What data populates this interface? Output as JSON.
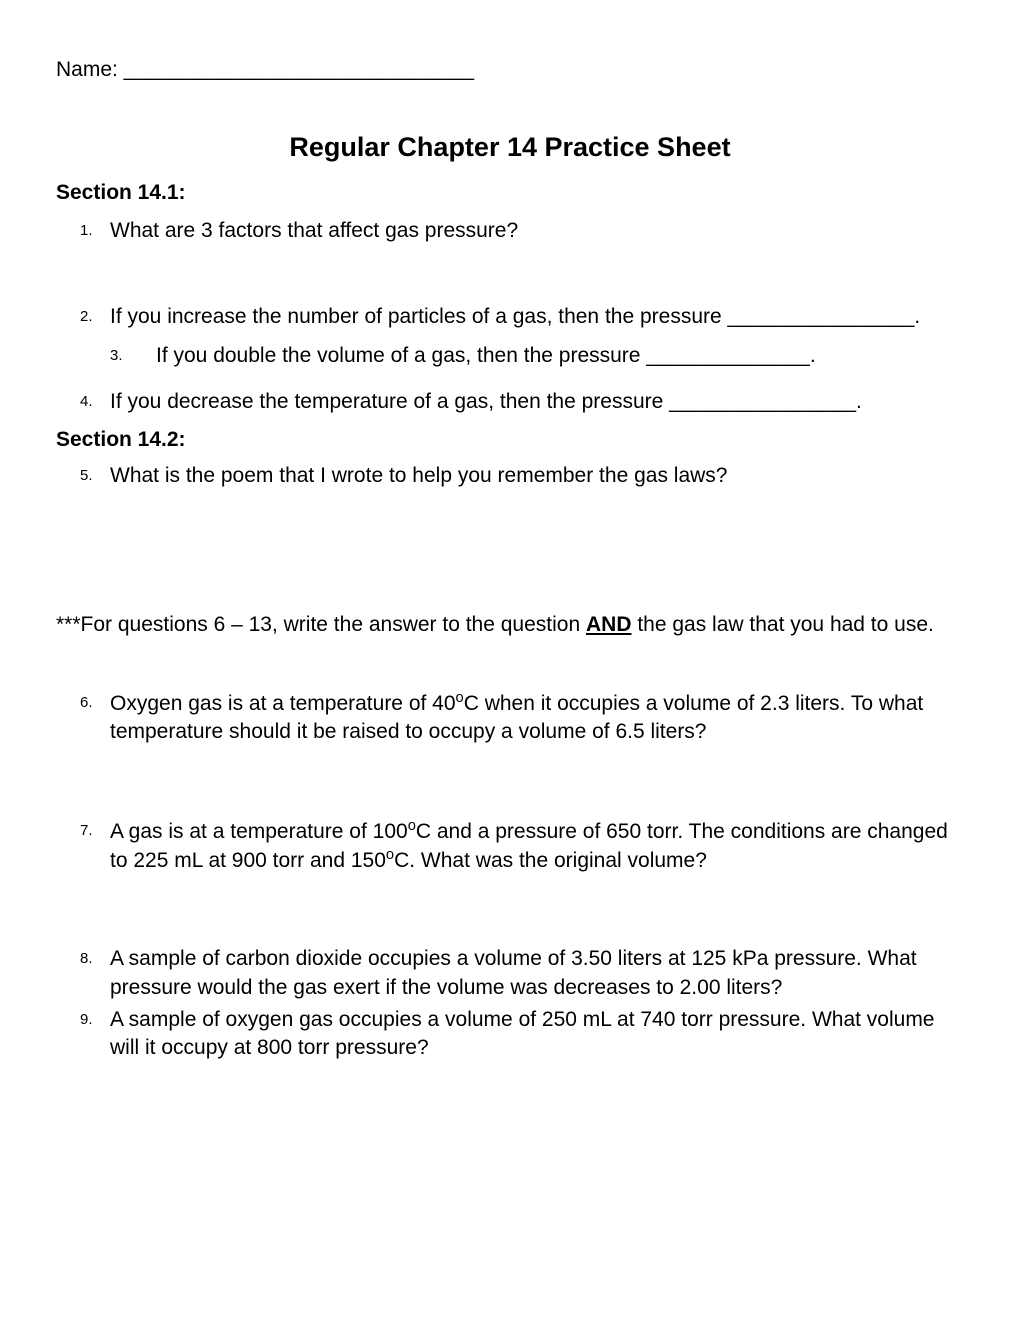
{
  "header": {
    "name_label": "Name: ______________________________",
    "title": "Regular Chapter 14 Practice Sheet"
  },
  "section1": {
    "heading": "Section 14.1:",
    "q1": {
      "num": "1.",
      "text": "What are 3 factors that affect gas pressure?"
    },
    "q2": {
      "num": "2.",
      "text": "If you increase the number of particles of a gas, then the pressure ________________."
    },
    "q3": {
      "num": "3.",
      "text": "If you double the volume of a gas, then the pressure ______________."
    },
    "q4": {
      "num": "4.",
      "text": "If you decrease the temperature of a gas, then the pressure ________________."
    }
  },
  "section2": {
    "heading": "Section 14.2:",
    "q5": {
      "num": "5.",
      "text": "What is the poem that I wrote to help you remember the gas laws?"
    },
    "note_pre": "***For questions 6 – 13, write the answer to the question ",
    "note_and": "AND",
    "note_post": " the gas law that you had to use.",
    "q6": {
      "num": "6.",
      "pre": "Oxygen gas is at a temperature of 40",
      "deg": "o",
      "post": "C when it occupies a volume of 2.3 liters. To what temperature should it be raised to occupy a volume of 6.5 liters?"
    },
    "q7": {
      "num": "7.",
      "pre": "A gas is at a temperature of 100",
      "deg": "o",
      "mid": "C and a pressure of 650 torr. The conditions are changed to 225 mL at 900 torr and 150",
      "deg2": "o",
      "post": "C. What was the original volume?"
    },
    "q8": {
      "num": "8.",
      "text": "A sample of carbon dioxide occupies a volume of 3.50 liters at 125 kPa pressure. What pressure would the gas exert if the volume was decreases to 2.00 liters?"
    },
    "q9": {
      "num": "9.",
      "text": "A sample of oxygen gas occupies a volume of 250 mL at 740 torr pressure. What volume will it occupy at 800 torr pressure?"
    }
  },
  "style": {
    "background_color": "#ffffff",
    "text_color": "#000000",
    "body_fontsize": 21,
    "title_fontsize": 27,
    "number_fontsize": 15,
    "font_family": "Arial"
  }
}
